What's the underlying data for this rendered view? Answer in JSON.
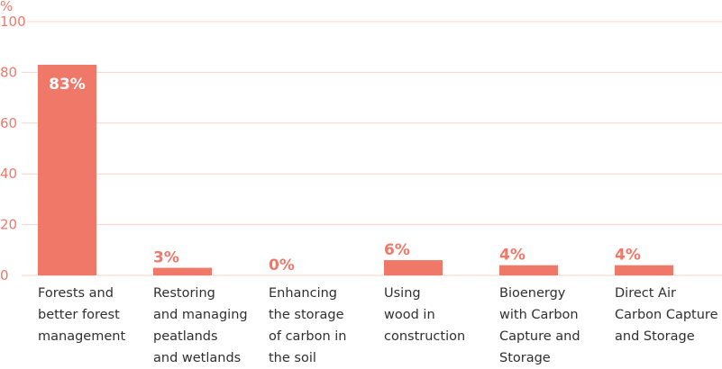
{
  "chart_data": {
    "type": "bar",
    "ylabel": "%",
    "ylim": [
      0,
      100
    ],
    "yticks": [
      0,
      20,
      40,
      60,
      80,
      100
    ],
    "grid": true,
    "categories": [
      [
        "Forests and",
        "better forest",
        "management"
      ],
      [
        "Restoring",
        "and managing",
        "peatlands",
        "and wetlands"
      ],
      [
        "Enhancing",
        "the storage",
        "of carbon in",
        "the soil"
      ],
      [
        "Using",
        "wood in",
        "construction"
      ],
      [
        "Bioenergy",
        "with Carbon",
        "Capture and",
        "Storage"
      ],
      [
        "Direct Air",
        "Carbon Capture",
        "and Storage"
      ]
    ],
    "values": [
      83,
      3,
      0,
      6,
      4,
      4
    ],
    "data_labels": [
      "83%",
      "3%",
      "0%",
      "6%",
      "4%",
      "4%"
    ],
    "colors": {
      "bar": "#EF7869",
      "grid": "#F8D3CB",
      "axis_text": "#EF7869",
      "label_text": "#2f2f2f"
    }
  }
}
